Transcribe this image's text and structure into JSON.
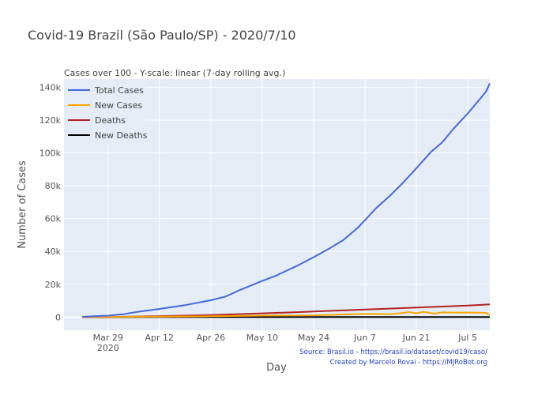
{
  "title": "Covid-19 Brazil (São Paulo/SP) - 2020/7/10",
  "chart_data": {
    "type": "line",
    "title": "Covid-19 Brazil (São Paulo/SP) - 2020/7/10",
    "subtitle": "Cases over 100 - Y-scale: linear (7-day rolling avg.)",
    "xlabel": "Day",
    "ylabel": "Number of Cases",
    "x_range": [
      "2020-03-17",
      "2020-07-11"
    ],
    "ylim": [
      -8000,
      145000
    ],
    "grid": true,
    "legend_position": "top-left",
    "x_ticks": [
      {
        "date": "2020-03-29",
        "label": "Mar 29",
        "sublabel": "2020"
      },
      {
        "date": "2020-04-12",
        "label": "Apr 12",
        "sublabel": ""
      },
      {
        "date": "2020-04-26",
        "label": "Apr 26",
        "sublabel": ""
      },
      {
        "date": "2020-05-10",
        "label": "May 10",
        "sublabel": ""
      },
      {
        "date": "2020-05-24",
        "label": "May 24",
        "sublabel": ""
      },
      {
        "date": "2020-06-07",
        "label": "Jun 7",
        "sublabel": ""
      },
      {
        "date": "2020-06-21",
        "label": "Jun 21",
        "sublabel": ""
      },
      {
        "date": "2020-07-05",
        "label": "Jul 5",
        "sublabel": ""
      }
    ],
    "y_ticks": [
      {
        "value": 0,
        "label": "0"
      },
      {
        "value": 20000,
        "label": "20k"
      },
      {
        "value": 40000,
        "label": "40k"
      },
      {
        "value": 60000,
        "label": "60k"
      },
      {
        "value": 80000,
        "label": "80k"
      },
      {
        "value": 100000,
        "label": "100k"
      },
      {
        "value": 120000,
        "label": "120k"
      },
      {
        "value": 140000,
        "label": "140k"
      }
    ],
    "series": [
      {
        "name": "Total Cases",
        "color": "#4169e1",
        "points": [
          [
            "2020-03-22",
            200
          ],
          [
            "2020-03-25",
            500
          ],
          [
            "2020-03-29",
            900
          ],
          [
            "2020-04-02",
            1700
          ],
          [
            "2020-04-06",
            3200
          ],
          [
            "2020-04-12",
            5000
          ],
          [
            "2020-04-19",
            7300
          ],
          [
            "2020-04-26",
            10300
          ],
          [
            "2020-04-30",
            12500
          ],
          [
            "2020-05-04",
            16600
          ],
          [
            "2020-05-10",
            22000
          ],
          [
            "2020-05-14",
            25500
          ],
          [
            "2020-05-20",
            31800
          ],
          [
            "2020-05-24",
            36500
          ],
          [
            "2020-05-28",
            41400
          ],
          [
            "2020-06-01",
            46800
          ],
          [
            "2020-06-05",
            54300
          ],
          [
            "2020-06-07",
            59000
          ],
          [
            "2020-06-10",
            66300
          ],
          [
            "2020-06-14",
            74300
          ],
          [
            "2020-06-17",
            81000
          ],
          [
            "2020-06-21",
            90700
          ],
          [
            "2020-06-25",
            100700
          ],
          [
            "2020-06-28",
            106300
          ],
          [
            "2020-07-01",
            114400
          ],
          [
            "2020-07-05",
            124000
          ],
          [
            "2020-07-08",
            132000
          ],
          [
            "2020-07-10",
            137500
          ],
          [
            "2020-07-11",
            142300
          ]
        ]
      },
      {
        "name": "New Cases",
        "color": "#ffa500",
        "points": [
          [
            "2020-03-22",
            100
          ],
          [
            "2020-03-29",
            150
          ],
          [
            "2020-04-12",
            300
          ],
          [
            "2020-04-26",
            500
          ],
          [
            "2020-05-10",
            900
          ],
          [
            "2020-05-24",
            1100
          ],
          [
            "2020-06-07",
            2000
          ],
          [
            "2020-06-14",
            1800
          ],
          [
            "2020-06-17",
            2400
          ],
          [
            "2020-06-19",
            3100
          ],
          [
            "2020-06-21",
            2300
          ],
          [
            "2020-06-23",
            3200
          ],
          [
            "2020-06-26",
            2100
          ],
          [
            "2020-06-28",
            2900
          ],
          [
            "2020-07-01",
            2800
          ],
          [
            "2020-07-05",
            2800
          ],
          [
            "2020-07-08",
            2700
          ],
          [
            "2020-07-10",
            2600
          ],
          [
            "2020-07-11",
            1400
          ]
        ]
      },
      {
        "name": "Deaths",
        "color": "#b22222",
        "points": [
          [
            "2020-03-22",
            0
          ],
          [
            "2020-03-29",
            100
          ],
          [
            "2020-04-12",
            600
          ],
          [
            "2020-04-26",
            1300
          ],
          [
            "2020-05-10",
            2300
          ],
          [
            "2020-05-24",
            3400
          ],
          [
            "2020-06-07",
            4600
          ],
          [
            "2020-06-21",
            5800
          ],
          [
            "2020-07-05",
            7000
          ],
          [
            "2020-07-11",
            7800
          ]
        ]
      },
      {
        "name": "New Deaths",
        "color": "#000000",
        "points": [
          [
            "2020-03-22",
            0
          ],
          [
            "2020-04-12",
            30
          ],
          [
            "2020-05-10",
            60
          ],
          [
            "2020-06-07",
            80
          ],
          [
            "2020-07-05",
            90
          ],
          [
            "2020-07-11",
            90
          ]
        ]
      }
    ],
    "annotations": [
      "Source: Brasil.io - https://brasil.io/dataset/covid19/caso/",
      "Created by Marcelo Rovai - https://MJRoBot.org"
    ]
  }
}
